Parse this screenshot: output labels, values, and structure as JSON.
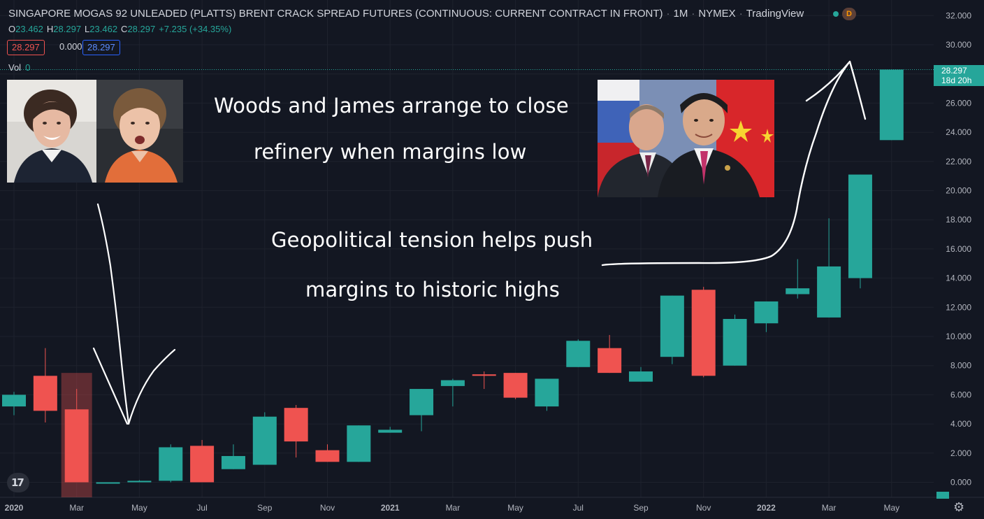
{
  "header": {
    "title": "SINGAPORE MOGAS 92 UNLEADED (PLATTS) BRENT CRACK SPREAD FUTURES (CONTINUOUS: CURRENT CONTRACT IN FRONT)",
    "interval": "1M",
    "exchange": "NYMEX",
    "source": "TradingView",
    "badge": "D"
  },
  "ohlc": {
    "o_label": "O",
    "o": "23.462",
    "h_label": "H",
    "h": "28.297",
    "l_label": "L",
    "l": "23.462",
    "c_label": "C",
    "c": "28.297",
    "change": "+7.235 (+34.35%)"
  },
  "boxes": {
    "sell": "28.297",
    "spread": "0.000",
    "buy": "28.297"
  },
  "volume": {
    "label": "Vol",
    "value": "0"
  },
  "annotations": {
    "line1": "Woods and James arrange to close",
    "line2": "refinery when margins low",
    "line3": "Geopolitical tension helps push",
    "line4": "margins to historic highs"
  },
  "last_price": {
    "value": "28.297",
    "countdown": "18d 20h"
  },
  "logo_text": "17",
  "colors": {
    "up": "#26a69a",
    "down": "#ef5350",
    "background": "#131722"
  },
  "icons": {
    "settings": "gear-icon",
    "logo": "tradingview-logo"
  },
  "chart_data": {
    "type": "candlestick",
    "interval": "1M",
    "ylim": [
      -1,
      33
    ],
    "y_ticks": [
      0,
      2,
      4,
      6,
      8,
      10,
      12,
      14,
      16,
      18,
      20,
      22,
      24,
      26,
      28,
      30,
      32
    ],
    "y_tick_labels": [
      "0.000",
      "2.000",
      "4.000",
      "6.000",
      "8.000",
      "10.000",
      "12.000",
      "14.000",
      "16.000",
      "18.000",
      "20.000",
      "22.000",
      "24.000",
      "26.000",
      "28.000",
      "30.000",
      "32.000"
    ],
    "x_tick_labels": [
      "2020",
      "Mar",
      "May",
      "Jul",
      "Sep",
      "Nov",
      "2021",
      "Mar",
      "May",
      "Jul",
      "Sep",
      "Nov",
      "2022",
      "Mar",
      "May"
    ],
    "x_tick_months": [
      "2020-01",
      "2020-03",
      "2020-05",
      "2020-07",
      "2020-09",
      "2020-11",
      "2021-01",
      "2021-03",
      "2021-05",
      "2021-07",
      "2021-09",
      "2021-11",
      "2022-01",
      "2022-03",
      "2022-05"
    ],
    "candles": [
      {
        "month": "2020-01",
        "o": 5.2,
        "h": 6.2,
        "l": 4.6,
        "c": 6.0
      },
      {
        "month": "2020-02",
        "o": 7.3,
        "h": 9.2,
        "l": 4.1,
        "c": 4.9
      },
      {
        "month": "2020-03",
        "o": 5.0,
        "h": 6.4,
        "l": 0.0,
        "c": 0.0
      },
      {
        "month": "2020-04",
        "o": 0.0,
        "h": 0.0,
        "l": 0.0,
        "c": 0.0
      },
      {
        "month": "2020-05",
        "o": 0.0,
        "h": 0.15,
        "l": 0.0,
        "c": 0.1
      },
      {
        "month": "2020-06",
        "o": 0.1,
        "h": 2.6,
        "l": 0.0,
        "c": 2.4
      },
      {
        "month": "2020-07",
        "o": 2.5,
        "h": 2.9,
        "l": 0.0,
        "c": 0.0
      },
      {
        "month": "2020-08",
        "o": 0.9,
        "h": 2.6,
        "l": 0.9,
        "c": 1.8
      },
      {
        "month": "2020-09",
        "o": 1.2,
        "h": 4.8,
        "l": 1.2,
        "c": 4.5
      },
      {
        "month": "2020-10",
        "o": 5.1,
        "h": 5.3,
        "l": 1.7,
        "c": 2.8
      },
      {
        "month": "2020-11",
        "o": 2.2,
        "h": 2.6,
        "l": 1.4,
        "c": 1.4
      },
      {
        "month": "2020-12",
        "o": 1.4,
        "h": 3.9,
        "l": 1.4,
        "c": 3.9
      },
      {
        "month": "2021-01",
        "o": 3.4,
        "h": 3.8,
        "l": 3.4,
        "c": 3.6
      },
      {
        "month": "2021-02",
        "o": 4.6,
        "h": 6.4,
        "l": 3.5,
        "c": 6.4
      },
      {
        "month": "2021-03",
        "o": 6.6,
        "h": 7.1,
        "l": 5.2,
        "c": 7.0
      },
      {
        "month": "2021-04",
        "o": 7.4,
        "h": 7.6,
        "l": 6.4,
        "c": 7.3
      },
      {
        "month": "2021-05",
        "o": 7.5,
        "h": 7.5,
        "l": 5.7,
        "c": 5.8
      },
      {
        "month": "2021-06",
        "o": 5.2,
        "h": 7.1,
        "l": 4.9,
        "c": 7.1
      },
      {
        "month": "2021-07",
        "o": 7.9,
        "h": 9.8,
        "l": 7.9,
        "c": 9.7
      },
      {
        "month": "2021-08",
        "o": 9.2,
        "h": 10.1,
        "l": 7.5,
        "c": 7.5
      },
      {
        "month": "2021-09",
        "o": 6.9,
        "h": 7.9,
        "l": 6.9,
        "c": 7.6
      },
      {
        "month": "2021-10",
        "o": 8.6,
        "h": 12.8,
        "l": 8.1,
        "c": 12.8
      },
      {
        "month": "2021-11",
        "o": 13.2,
        "h": 13.4,
        "l": 7.2,
        "c": 7.3
      },
      {
        "month": "2021-12",
        "o": 8.0,
        "h": 11.5,
        "l": 8.0,
        "c": 11.2
      },
      {
        "month": "2022-01",
        "o": 10.9,
        "h": 12.4,
        "l": 10.3,
        "c": 12.4
      },
      {
        "month": "2022-02",
        "o": 12.9,
        "h": 15.3,
        "l": 12.6,
        "c": 13.3
      },
      {
        "month": "2022-03",
        "o": 11.3,
        "h": 18.1,
        "l": 11.3,
        "c": 14.8
      },
      {
        "month": "2022-04",
        "o": 14.0,
        "h": 21.1,
        "l": 13.3,
        "c": 21.1
      },
      {
        "month": "2022-05",
        "o": 23.462,
        "h": 28.297,
        "l": 23.462,
        "c": 28.297
      }
    ]
  }
}
